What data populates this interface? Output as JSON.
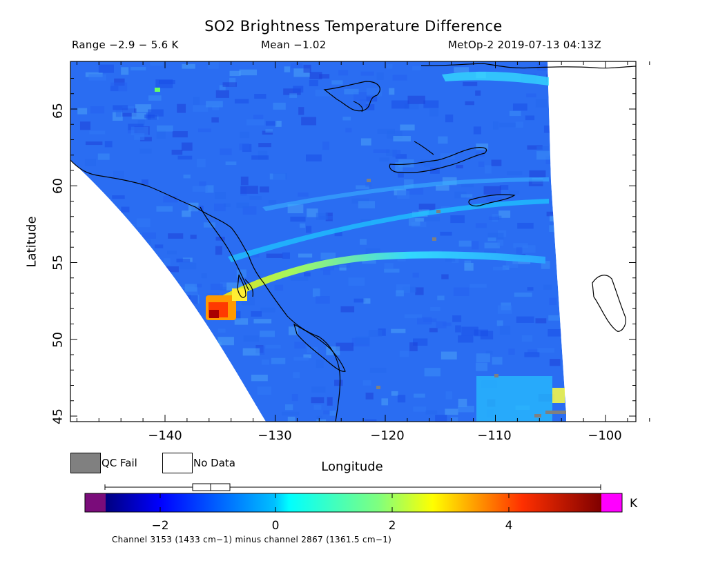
{
  "header": {
    "title": "SO2 Brightness Temperature Difference",
    "range": "Range −2.9 − 5.6 K",
    "mean": "Mean −1.02",
    "source": "MetOp-2 2019-07-13 04:13Z"
  },
  "axes": {
    "x_label": "Longitude",
    "y_label": "Latitude",
    "x_ticks": [
      "−140",
      "−130",
      "−120",
      "−110",
      "−100"
    ],
    "y_ticks": [
      "45",
      "50",
      "55",
      "60",
      "65"
    ],
    "x_range": [
      -149,
      -95
    ],
    "y_range": [
      44.5,
      68
    ]
  },
  "legend": {
    "qc_fail": "QC Fail",
    "no_data": "No Data",
    "qc_fail_color": "#808080",
    "no_data_color": "#ffffff"
  },
  "colorbar": {
    "unit": "K",
    "ticks": [
      "−2",
      "0",
      "2",
      "4"
    ],
    "min": -2.9,
    "max": 5.6,
    "under_color": "#7a0c7a",
    "over_color": "#ff00ff"
  },
  "footer": {
    "note": "Channel 3153 (1433 cm−1) minus channel 2867 (1361.5 cm−1)"
  }
}
